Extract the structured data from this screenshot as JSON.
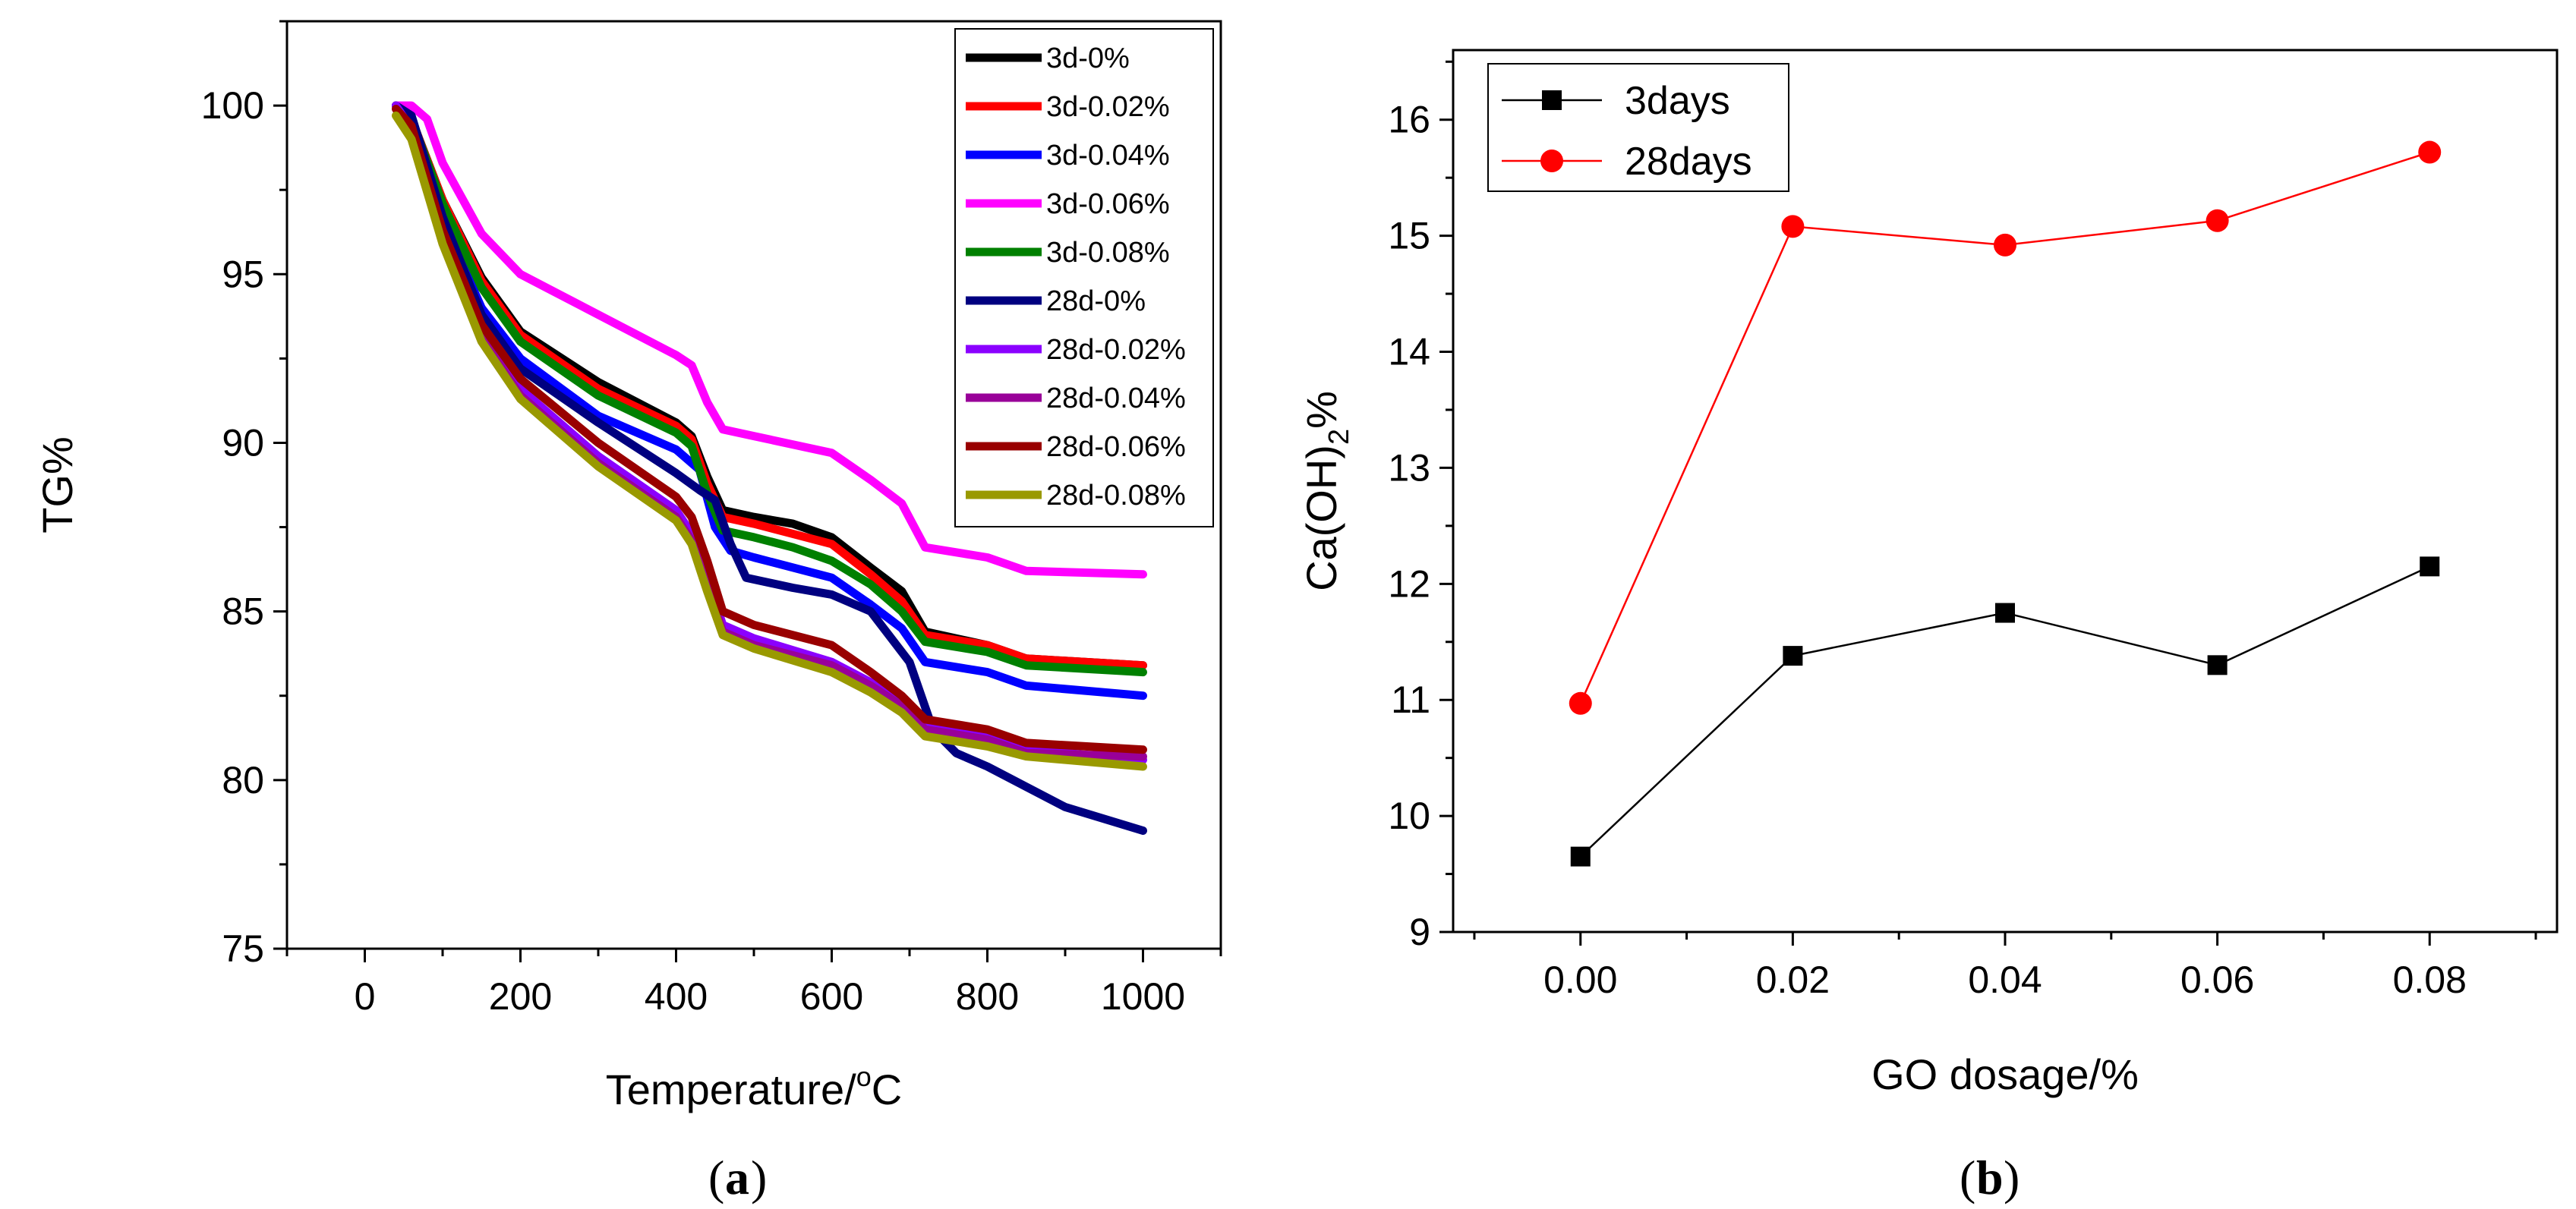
{
  "chart_data": [
    {
      "type": "line",
      "panel_label": "a",
      "xlabel": "Temperature/",
      "xlabel_sup": "o",
      "xlabel_unit": "C",
      "ylabel": "TG%",
      "xlim": [
        -100,
        1100
      ],
      "ylim": [
        75,
        102.5
      ],
      "xticks": [
        0,
        200,
        400,
        600,
        800,
        1000
      ],
      "yticks": [
        75,
        80,
        85,
        90,
        95,
        100
      ],
      "legend_position": "top-right",
      "series": [
        {
          "name": "3d-0%",
          "color": "#000000",
          "points": [
            [
              40,
              100
            ],
            [
              60,
              99.6
            ],
            [
              100,
              97.2
            ],
            [
              150,
              94.9
            ],
            [
              200,
              93.3
            ],
            [
              300,
              91.8
            ],
            [
              400,
              90.6
            ],
            [
              420,
              90.2
            ],
            [
              440,
              89.0
            ],
            [
              460,
              88.0
            ],
            [
              500,
              87.8
            ],
            [
              550,
              87.6
            ],
            [
              600,
              87.2
            ],
            [
              650,
              86.3
            ],
            [
              690,
              85.6
            ],
            [
              720,
              84.4
            ],
            [
              800,
              84.0
            ],
            [
              850,
              83.6
            ],
            [
              1000,
              83.4
            ]
          ]
        },
        {
          "name": "3d-0.02%",
          "color": "#ff0000",
          "points": [
            [
              40,
              100
            ],
            [
              60,
              99.6
            ],
            [
              100,
              97.2
            ],
            [
              150,
              94.8
            ],
            [
              200,
              93.2
            ],
            [
              300,
              91.6
            ],
            [
              400,
              90.5
            ],
            [
              420,
              90.1
            ],
            [
              440,
              88.8
            ],
            [
              460,
              87.8
            ],
            [
              500,
              87.6
            ],
            [
              550,
              87.3
            ],
            [
              600,
              87.0
            ],
            [
              650,
              86.1
            ],
            [
              690,
              85.3
            ],
            [
              720,
              84.3
            ],
            [
              800,
              84.0
            ],
            [
              850,
              83.6
            ],
            [
              1000,
              83.4
            ]
          ]
        },
        {
          "name": "3d-0.04%",
          "color": "#0000ff",
          "points": [
            [
              40,
              100
            ],
            [
              60,
              99.5
            ],
            [
              100,
              96.6
            ],
            [
              150,
              94.0
            ],
            [
              200,
              92.5
            ],
            [
              300,
              90.8
            ],
            [
              400,
              89.8
            ],
            [
              430,
              89.2
            ],
            [
              450,
              87.5
            ],
            [
              470,
              86.8
            ],
            [
              500,
              86.6
            ],
            [
              600,
              86.0
            ],
            [
              650,
              85.2
            ],
            [
              690,
              84.5
            ],
            [
              720,
              83.5
            ],
            [
              800,
              83.2
            ],
            [
              850,
              82.8
            ],
            [
              1000,
              82.5
            ]
          ]
        },
        {
          "name": "3d-0.06%",
          "color": "#ff00ff",
          "points": [
            [
              40,
              100
            ],
            [
              60,
              100
            ],
            [
              80,
              99.6
            ],
            [
              100,
              98.3
            ],
            [
              150,
              96.2
            ],
            [
              200,
              95.0
            ],
            [
              300,
              93.8
            ],
            [
              400,
              92.6
            ],
            [
              420,
              92.3
            ],
            [
              440,
              91.2
            ],
            [
              460,
              90.4
            ],
            [
              500,
              90.2
            ],
            [
              600,
              89.7
            ],
            [
              650,
              88.9
            ],
            [
              690,
              88.2
            ],
            [
              720,
              86.9
            ],
            [
              800,
              86.6
            ],
            [
              850,
              86.2
            ],
            [
              1000,
              86.1
            ]
          ]
        },
        {
          "name": "3d-0.08%",
          "color": "#008000",
          "points": [
            [
              40,
              100
            ],
            [
              60,
              99.6
            ],
            [
              100,
              97.1
            ],
            [
              150,
              94.6
            ],
            [
              200,
              93.0
            ],
            [
              300,
              91.4
            ],
            [
              400,
              90.3
            ],
            [
              420,
              89.9
            ],
            [
              440,
              88.5
            ],
            [
              460,
              87.4
            ],
            [
              500,
              87.2
            ],
            [
              550,
              86.9
            ],
            [
              600,
              86.5
            ],
            [
              650,
              85.8
            ],
            [
              690,
              85.0
            ],
            [
              720,
              84.1
            ],
            [
              800,
              83.8
            ],
            [
              850,
              83.4
            ],
            [
              1000,
              83.2
            ]
          ]
        },
        {
          "name": "28d-0%",
          "color": "#000080",
          "points": [
            [
              40,
              100
            ],
            [
              60,
              99.7
            ],
            [
              100,
              96.7
            ],
            [
              150,
              93.8
            ],
            [
              200,
              92.2
            ],
            [
              300,
              90.6
            ],
            [
              400,
              89.1
            ],
            [
              430,
              88.6
            ],
            [
              450,
              88.3
            ],
            [
              470,
              87.0
            ],
            [
              490,
              86.0
            ],
            [
              550,
              85.7
            ],
            [
              600,
              85.5
            ],
            [
              650,
              85.0
            ],
            [
              700,
              83.5
            ],
            [
              730,
              81.5
            ],
            [
              760,
              80.8
            ],
            [
              800,
              80.4
            ],
            [
              850,
              79.8
            ],
            [
              900,
              79.2
            ],
            [
              1000,
              78.5
            ]
          ]
        },
        {
          "name": "28d-0.02%",
          "color": "#8b00ff",
          "points": [
            [
              40,
              100
            ],
            [
              60,
              99.3
            ],
            [
              100,
              96.2
            ],
            [
              150,
              93.3
            ],
            [
              200,
              91.6
            ],
            [
              300,
              89.6
            ],
            [
              400,
              88.0
            ],
            [
              420,
              87.3
            ],
            [
              440,
              86.0
            ],
            [
              460,
              84.6
            ],
            [
              500,
              84.2
            ],
            [
              600,
              83.5
            ],
            [
              650,
              82.9
            ],
            [
              690,
              82.3
            ],
            [
              720,
              81.6
            ],
            [
              800,
              81.3
            ],
            [
              850,
              80.9
            ],
            [
              1000,
              80.6
            ]
          ]
        },
        {
          "name": "28d-0.04%",
          "color": "#990099",
          "points": [
            [
              40,
              99.9
            ],
            [
              60,
              99.2
            ],
            [
              100,
              96.0
            ],
            [
              150,
              93.1
            ],
            [
              200,
              91.4
            ],
            [
              300,
              89.4
            ],
            [
              400,
              87.8
            ],
            [
              420,
              87.1
            ],
            [
              440,
              85.8
            ],
            [
              460,
              84.4
            ],
            [
              500,
              84.0
            ],
            [
              600,
              83.4
            ],
            [
              650,
              82.8
            ],
            [
              690,
              82.2
            ],
            [
              720,
              81.5
            ],
            [
              800,
              81.2
            ],
            [
              850,
              80.8
            ],
            [
              1000,
              80.7
            ]
          ]
        },
        {
          "name": "28d-0.06%",
          "color": "#990000",
          "points": [
            [
              40,
              99.9
            ],
            [
              60,
              99.4
            ],
            [
              100,
              96.3
            ],
            [
              150,
              93.5
            ],
            [
              200,
              91.9
            ],
            [
              300,
              90.0
            ],
            [
              400,
              88.4
            ],
            [
              420,
              87.8
            ],
            [
              440,
              86.5
            ],
            [
              460,
              85.0
            ],
            [
              500,
              84.6
            ],
            [
              600,
              84.0
            ],
            [
              650,
              83.2
            ],
            [
              690,
              82.5
            ],
            [
              720,
              81.8
            ],
            [
              800,
              81.5
            ],
            [
              850,
              81.1
            ],
            [
              1000,
              80.9
            ]
          ]
        },
        {
          "name": "28d-0.08%",
          "color": "#999900",
          "points": [
            [
              40,
              99.7
            ],
            [
              60,
              99.0
            ],
            [
              100,
              95.9
            ],
            [
              150,
              93.0
            ],
            [
              200,
              91.3
            ],
            [
              300,
              89.3
            ],
            [
              400,
              87.7
            ],
            [
              420,
              87.0
            ],
            [
              440,
              85.6
            ],
            [
              460,
              84.3
            ],
            [
              500,
              83.9
            ],
            [
              600,
              83.2
            ],
            [
              650,
              82.6
            ],
            [
              690,
              82.0
            ],
            [
              720,
              81.3
            ],
            [
              800,
              81.0
            ],
            [
              850,
              80.7
            ],
            [
              1000,
              80.4
            ]
          ]
        }
      ]
    },
    {
      "type": "line",
      "panel_label": "b",
      "xlabel": "GO dosage/%",
      "ylabel_prefix": "Ca(OH)",
      "ylabel_sub": "2",
      "ylabel_suffix": "%",
      "xlim": [
        -0.012,
        0.092
      ],
      "ylim": [
        9,
        16.6
      ],
      "xticks": [
        "0.00",
        "0.02",
        "0.04",
        "0.06",
        "0.08"
      ],
      "yticks": [
        9,
        10,
        11,
        12,
        13,
        14,
        15,
        16
      ],
      "legend_position": "top-left",
      "x": [
        0.0,
        0.02,
        0.04,
        0.06,
        0.08
      ],
      "series": [
        {
          "name": "3days",
          "color": "#000000",
          "marker": "square",
          "values": [
            9.65,
            11.38,
            11.75,
            11.3,
            12.15
          ]
        },
        {
          "name": "28days",
          "color": "#ff0000",
          "marker": "circle",
          "values": [
            10.97,
            15.08,
            14.92,
            15.13,
            15.72
          ]
        }
      ]
    }
  ]
}
